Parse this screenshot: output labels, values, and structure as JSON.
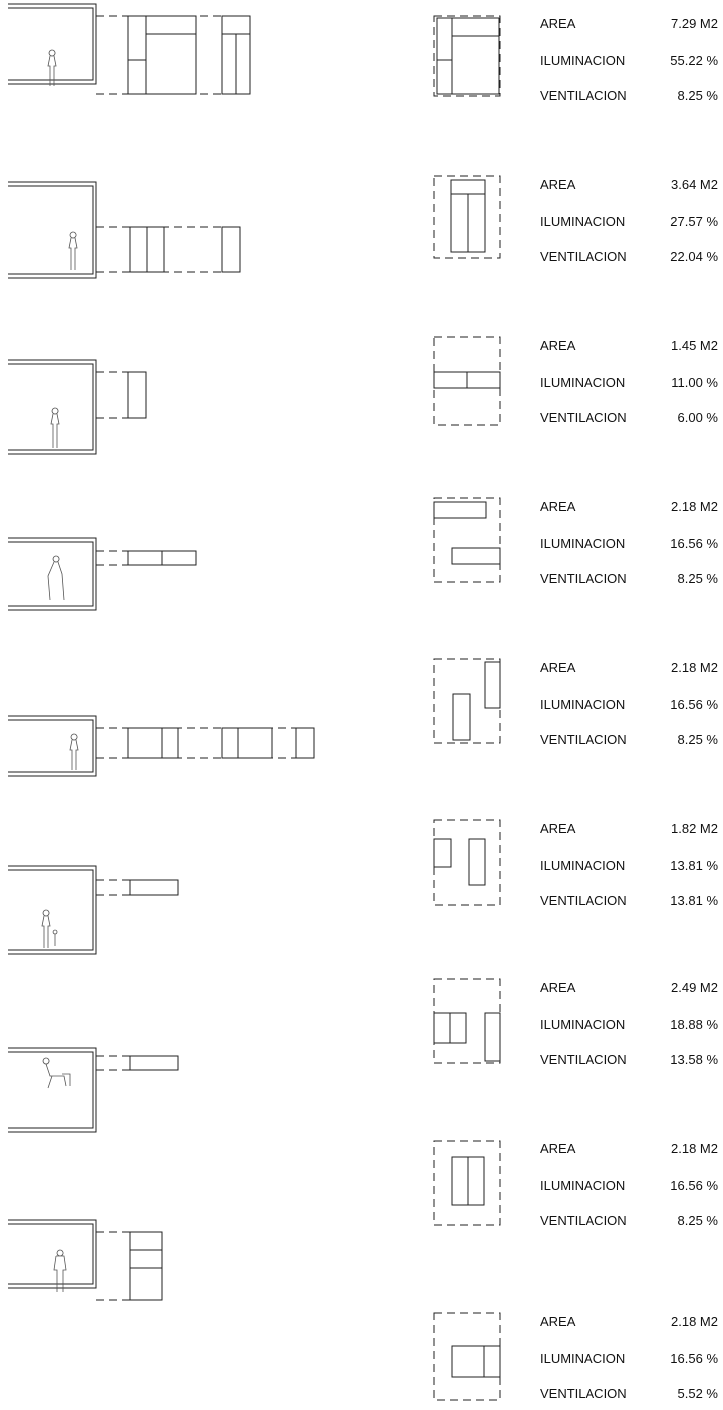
{
  "rows": [
    {
      "metrics": [
        {
          "label": "AREA",
          "value": "7.29 M2"
        },
        {
          "label": "ILUMINACION",
          "value": "55.22 %"
        },
        {
          "label": "VENTILACION",
          "value": "8.25 %"
        }
      ]
    },
    {
      "metrics": [
        {
          "label": "AREA",
          "value": "3.64 M2"
        },
        {
          "label": "ILUMINACION",
          "value": "27.57 %"
        },
        {
          "label": "VENTILACION",
          "value": "22.04 %"
        }
      ]
    },
    {
      "metrics": [
        {
          "label": "AREA",
          "value": "1.45 M2"
        },
        {
          "label": "ILUMINACION",
          "value": "11.00 %"
        },
        {
          "label": "VENTILACION",
          "value": "6.00 %"
        }
      ]
    },
    {
      "metrics": [
        {
          "label": "AREA",
          "value": "2.18 M2"
        },
        {
          "label": "ILUMINACION",
          "value": "16.56 %"
        },
        {
          "label": "VENTILACION",
          "value": "8.25 %"
        }
      ]
    },
    {
      "metrics": [
        {
          "label": "AREA",
          "value": "2.18 M2"
        },
        {
          "label": "ILUMINACION",
          "value": "16.56 %"
        },
        {
          "label": "VENTILACION",
          "value": "8.25 %"
        }
      ]
    },
    {
      "metrics": [
        {
          "label": "AREA",
          "value": "1.82 M2"
        },
        {
          "label": "ILUMINACION",
          "value": "13.81 %"
        },
        {
          "label": "VENTILACION",
          "value": "13.81 %"
        }
      ]
    },
    {
      "metrics": [
        {
          "label": "AREA",
          "value": "2.49 M2"
        },
        {
          "label": "ILUMINACION",
          "value": "18.88 %"
        },
        {
          "label": "VENTILACION",
          "value": "13.58 %"
        }
      ]
    },
    {
      "metrics": [
        {
          "label": "AREA",
          "value": "2.18 M2"
        },
        {
          "label": "ILUMINACION",
          "value": "16.56 %"
        },
        {
          "label": "VENTILACION",
          "value": "8.25 %"
        }
      ]
    },
    {
      "metrics": [
        {
          "label": "AREA",
          "value": "2.18 M2"
        },
        {
          "label": "ILUMINACION",
          "value": "16.56 %"
        },
        {
          "label": "VENTILACION",
          "value": "5.52 %"
        }
      ]
    }
  ]
}
